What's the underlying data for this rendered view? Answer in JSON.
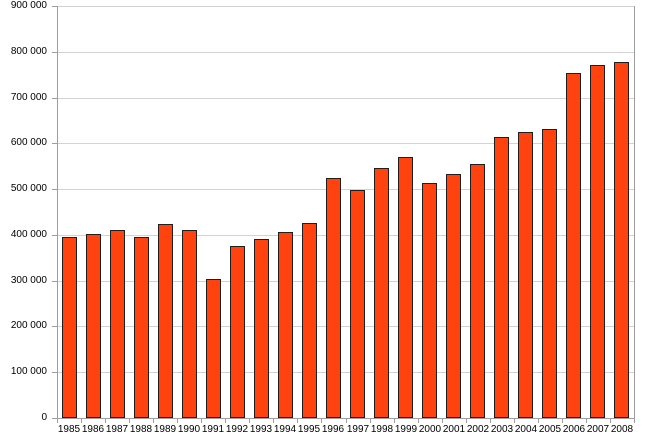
{
  "window": {
    "background_color": "#FFFFFF"
  },
  "chart_data": {
    "type": "bar",
    "title": "",
    "xlabel": "",
    "ylabel": "",
    "categories": [
      "1985",
      "1986",
      "1987",
      "1988",
      "1989",
      "1990",
      "1991",
      "1992",
      "1993",
      "1994",
      "1995",
      "1996",
      "1997",
      "1998",
      "1999",
      "2000",
      "2001",
      "2002",
      "2003",
      "2004",
      "2005",
      "2006",
      "2007",
      "2008"
    ],
    "values": [
      396000,
      402000,
      411000,
      396000,
      423000,
      410000,
      303000,
      375000,
      390000,
      406000,
      425000,
      525000,
      497000,
      546000,
      570000,
      514000,
      534000,
      554000,
      614000,
      625000,
      632000,
      754000,
      772000,
      777000
    ],
    "ylim": [
      0,
      900000
    ],
    "y_tick_step": 100000,
    "y_ticks": [
      {
        "value": 0,
        "label": "0"
      },
      {
        "value": 100000,
        "label": "100 000"
      },
      {
        "value": 200000,
        "label": "200 000"
      },
      {
        "value": 300000,
        "label": "300 000"
      },
      {
        "value": 400000,
        "label": "400 000"
      },
      {
        "value": 500000,
        "label": "500 000"
      },
      {
        "value": 600000,
        "label": "600 000"
      },
      {
        "value": 700000,
        "label": "700 000"
      },
      {
        "value": 800000,
        "label": "800 000"
      },
      {
        "value": 900000,
        "label": "900 000"
      }
    ],
    "grid": true,
    "legend": "none",
    "colors": {
      "bar_fill": "#FF420E",
      "bar_border": "#1F1F1F",
      "gridline": "#D3D3D3",
      "axis": "#9E9E9E",
      "label_text": "#000000"
    }
  }
}
